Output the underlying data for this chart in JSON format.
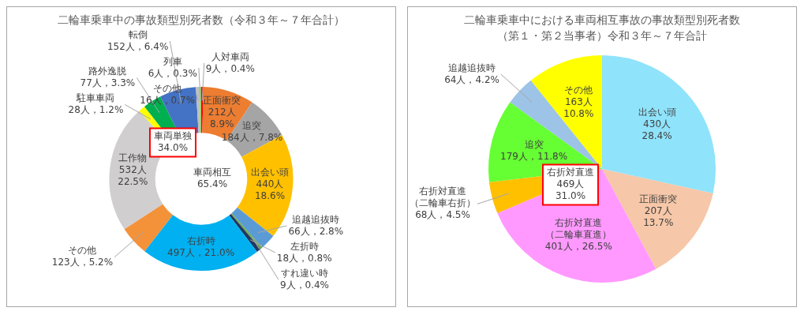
{
  "chart_data": [
    {
      "type": "donut",
      "title": "二輪車乗車中の事故類型別死者数（令和３年～７年合計）",
      "categories": [
        "人対車両",
        "正面衝突",
        "追突",
        "出会い頭",
        "追越追抜時",
        "すれ違い時",
        "左折時",
        "右折時",
        "その他",
        "工作物",
        "駐車車両",
        "路外逸脱",
        "転倒",
        "その他",
        "列車"
      ],
      "values": [
        9,
        212,
        184,
        440,
        66,
        9,
        18,
        497,
        123,
        532,
        28,
        77,
        152,
        16,
        6
      ],
      "colors": [
        "#ff0000",
        "#ed7d31",
        "#a5a5a5",
        "#ffc000",
        "#5b9bd5",
        "#70ad47",
        "#203864",
        "#00b0f0",
        "#f4923a",
        "#d0cece",
        "#ffff00",
        "#00b050",
        "#4472c4",
        "#bfbfbf",
        "#92d050"
      ],
      "value_labels": [
        "9人，0.4%",
        "212人\n8.9%",
        "184人，7.8%",
        "440人\n18.6%",
        "66人，2.8%",
        "9人，0.4%",
        "18人，0.8%",
        "497人，21.0%",
        "123人，5.2%",
        "532人\n22.5%",
        "28人，1.2%",
        "77人，3.3%",
        "152人，6.4%",
        "16人，0.7%",
        "6人，0.3%"
      ],
      "annotations": [
        "車両単独\n34.0%",
        "車両相互\n65.4%"
      ],
      "legend": false
    },
    {
      "type": "pie",
      "title": "二輪車乗車中における車両相互事故の事故類型別死者数（第１・第２当事者）令和３年～７年合計",
      "categories": [
        "出会い頭",
        "正面衝突",
        "右折対直進（二輪車直進）",
        "右折対直進（二輪車右折）",
        "追突",
        "追越追抜時",
        "その他"
      ],
      "values": [
        430,
        207,
        401,
        68,
        179,
        64,
        163
      ],
      "colors": [
        "#8fe3fb",
        "#f6c7a8",
        "#ff99ff",
        "#ffc000",
        "#66ff33",
        "#9dc3e6",
        "#ffff00"
      ],
      "value_labels": [
        "430人\n28.4%",
        "207人\n13.7%",
        "401人，26.5%",
        "68人，4.5%",
        "179人，11.8%",
        "64人，4.2%",
        "163人\n10.8%"
      ],
      "annotations": [
        "右折対直進\n469人\n31.0%"
      ],
      "legend": false
    }
  ]
}
